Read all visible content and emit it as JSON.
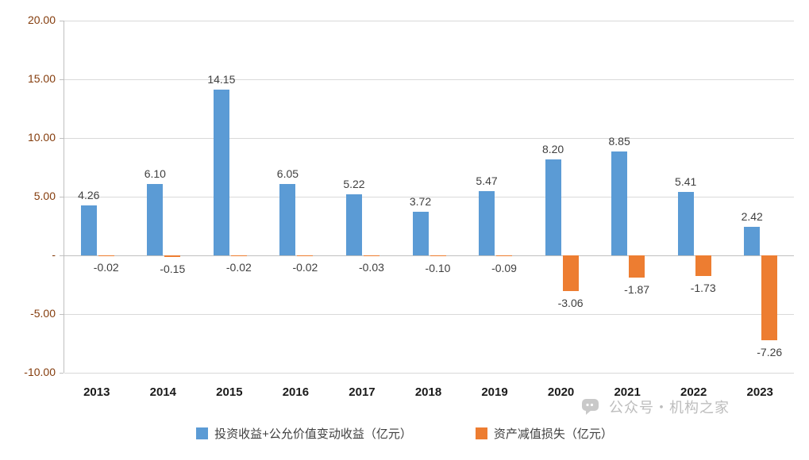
{
  "chart_data": {
    "type": "bar",
    "categories": [
      "2013",
      "2014",
      "2015",
      "2016",
      "2017",
      "2018",
      "2019",
      "2020",
      "2021",
      "2022",
      "2023"
    ],
    "series": [
      {
        "name": "投资收益+公允价值变动收益（亿元）",
        "color": "#5B9BD5",
        "values": [
          4.26,
          6.1,
          14.15,
          6.05,
          5.22,
          3.72,
          5.47,
          8.2,
          8.85,
          5.41,
          2.42
        ]
      },
      {
        "name": "资产减值损失（亿元）",
        "color": "#ED7D31",
        "values": [
          -0.02,
          -0.15,
          -0.02,
          -0.02,
          -0.03,
          -0.1,
          -0.09,
          -3.06,
          -1.87,
          -1.73,
          -7.26
        ]
      }
    ],
    "title": "",
    "xlabel": "",
    "ylabel": "",
    "ylim": [
      -10,
      20
    ],
    "yticks": [
      20,
      15,
      10,
      5,
      0,
      -5,
      -10
    ],
    "ytick_labels": [
      "20.00",
      "15.00",
      "10.00",
      "5.00",
      "-",
      "-5.00",
      "-10.00"
    ],
    "grid": true,
    "legend_position": "bottom"
  },
  "watermark": {
    "text": "公众号・机构之家",
    "icon": "chat-bubble-icon"
  }
}
